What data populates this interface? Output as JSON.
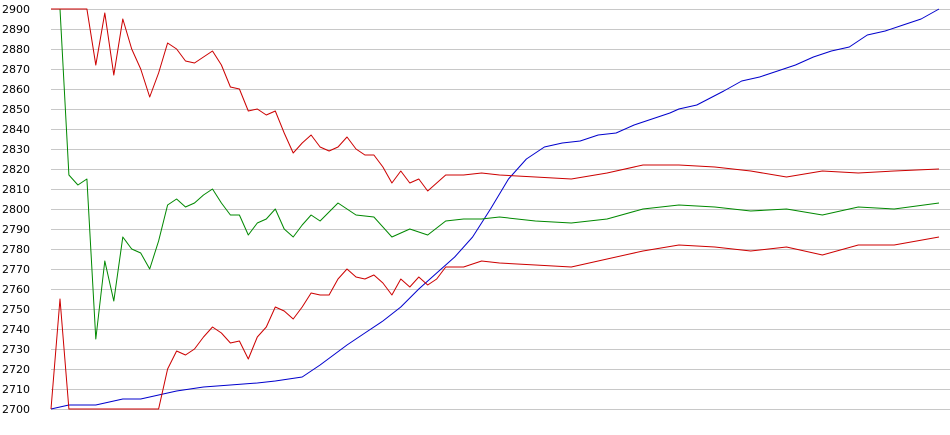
{
  "chart_data": {
    "type": "line",
    "title": "",
    "xlabel": "",
    "ylabel": "",
    "ylim": [
      2700,
      2900
    ],
    "yticks": [
      2700,
      2710,
      2720,
      2730,
      2740,
      2750,
      2760,
      2770,
      2780,
      2790,
      2800,
      2810,
      2820,
      2830,
      2840,
      2850,
      2860,
      2870,
      2880,
      2890,
      2900
    ],
    "xlim": [
      0,
      100
    ],
    "grid": true,
    "legend": "none",
    "series": [
      {
        "color": "#0000cc",
        "x": [
          0,
          2,
          5,
          8,
          10,
          14,
          17,
          20,
          23,
          25,
          28,
          30,
          33,
          35,
          37,
          39,
          41,
          43,
          45,
          47,
          49,
          51,
          53,
          55,
          57,
          59,
          61,
          63,
          65,
          67,
          69,
          70,
          72,
          75,
          77,
          79,
          81,
          83,
          85,
          87,
          89,
          91,
          93,
          95,
          97,
          99
        ],
        "y": [
          2700,
          2702,
          2702,
          2705,
          2705,
          2709,
          2711,
          2712,
          2713,
          2714,
          2716,
          2722,
          2732,
          2738,
          2744,
          2751,
          2760,
          2768,
          2776,
          2786,
          2800,
          2815,
          2825,
          2831,
          2833,
          2834,
          2837,
          2838,
          2842,
          2845,
          2848,
          2850,
          2852,
          2859,
          2864,
          2866,
          2869,
          2872,
          2876,
          2879,
          2881,
          2887,
          2889,
          2892,
          2895,
          2900
        ]
      },
      {
        "color": "#008800",
        "x": [
          0,
          1,
          2,
          3,
          4,
          5,
          6,
          7,
          8,
          9,
          10,
          11,
          12,
          13,
          14,
          15,
          16,
          17,
          18,
          19,
          20,
          21,
          22,
          23,
          24,
          25,
          26,
          27,
          28,
          29,
          30,
          32,
          34,
          36,
          38,
          40,
          42,
          44,
          46,
          48,
          50,
          54,
          58,
          62,
          66,
          70,
          74,
          78,
          82,
          86,
          90,
          94,
          99
        ],
        "y": [
          2900,
          2900,
          2817,
          2812,
          2815,
          2735,
          2774,
          2754,
          2786,
          2780,
          2778,
          2770,
          2784,
          2802,
          2805,
          2801,
          2803,
          2807,
          2810,
          2803,
          2797,
          2797,
          2787,
          2793,
          2795,
          2800,
          2790,
          2786,
          2792,
          2797,
          2794,
          2803,
          2797,
          2796,
          2786,
          2790,
          2787,
          2794,
          2795,
          2795,
          2796,
          2794,
          2793,
          2795,
          2800,
          2802,
          2801,
          2799,
          2800,
          2797,
          2801,
          2800,
          2803
        ]
      },
      {
        "color": "#cc0000",
        "x": [
          0,
          1,
          2,
          3,
          4,
          5,
          6,
          7,
          8,
          9,
          10,
          11,
          12,
          13,
          14,
          15,
          16,
          17,
          18,
          19,
          20,
          21,
          22,
          23,
          24,
          25,
          26,
          27,
          28,
          29,
          30,
          31,
          32,
          33,
          34,
          35,
          36,
          37,
          38,
          39,
          40,
          41,
          42,
          43,
          44,
          46,
          48,
          50,
          54,
          58,
          62,
          66,
          70,
          74,
          78,
          82,
          86,
          90,
          94,
          99
        ],
        "y": [
          2900,
          2900,
          2900,
          2900,
          2900,
          2872,
          2898,
          2867,
          2895,
          2880,
          2870,
          2856,
          2868,
          2883,
          2880,
          2874,
          2873,
          2876,
          2879,
          2872,
          2861,
          2860,
          2849,
          2850,
          2847,
          2849,
          2838,
          2828,
          2833,
          2837,
          2831,
          2829,
          2831,
          2836,
          2830,
          2827,
          2827,
          2821,
          2813,
          2819,
          2813,
          2815,
          2809,
          2813,
          2817,
          2817,
          2818,
          2817,
          2816,
          2815,
          2818,
          2822,
          2822,
          2821,
          2819,
          2816,
          2819,
          2818,
          2819,
          2820
        ]
      },
      {
        "color": "#cc0000",
        "x": [
          0,
          1,
          2,
          3,
          4,
          5,
          6,
          7,
          8,
          9,
          10,
          11,
          12,
          13,
          14,
          15,
          16,
          17,
          18,
          19,
          20,
          21,
          22,
          23,
          24,
          25,
          26,
          27,
          28,
          29,
          30,
          31,
          32,
          33,
          34,
          35,
          36,
          37,
          38,
          39,
          40,
          41,
          42,
          43,
          44,
          46,
          48,
          50,
          54,
          58,
          62,
          66,
          70,
          74,
          78,
          82,
          86,
          90,
          94,
          99
        ],
        "y": [
          2700,
          2755,
          2700,
          2700,
          2700,
          2700,
          2700,
          2700,
          2700,
          2700,
          2700,
          2700,
          2700,
          2720,
          2729,
          2727,
          2730,
          2736,
          2741,
          2738,
          2733,
          2734,
          2725,
          2736,
          2741,
          2751,
          2749,
          2745,
          2751,
          2758,
          2757,
          2757,
          2765,
          2770,
          2766,
          2765,
          2767,
          2763,
          2757,
          2765,
          2761,
          2766,
          2762,
          2765,
          2771,
          2771,
          2774,
          2773,
          2772,
          2771,
          2775,
          2779,
          2782,
          2781,
          2779,
          2781,
          2777,
          2782,
          2782,
          2786
        ]
      }
    ]
  }
}
